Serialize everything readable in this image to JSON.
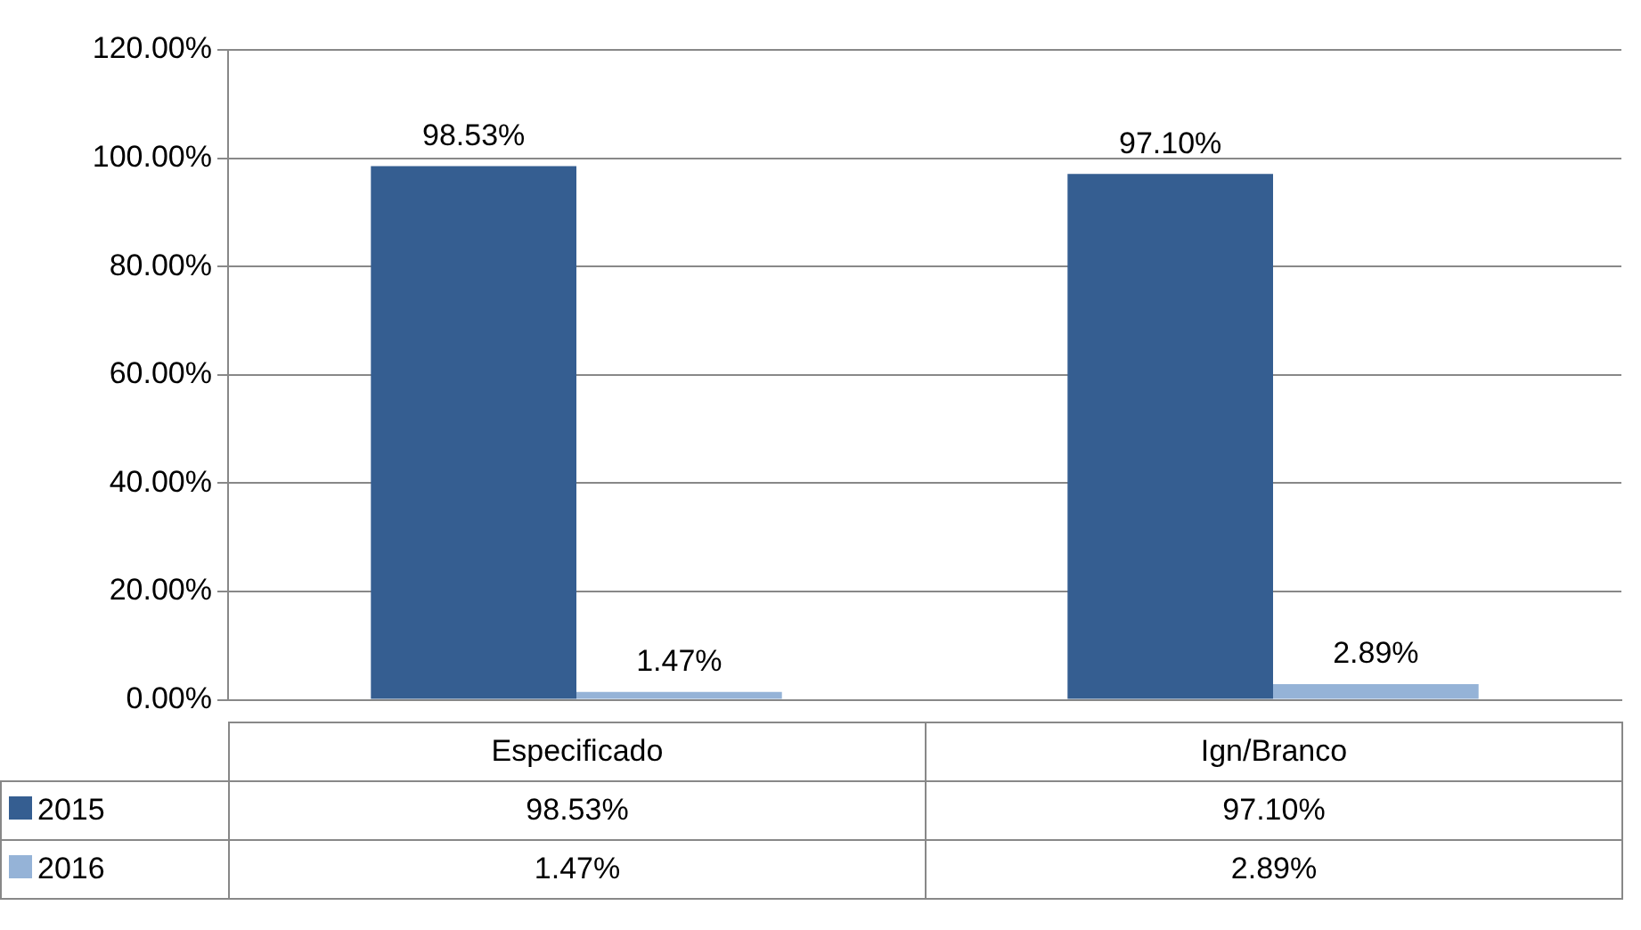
{
  "chart_data": {
    "type": "bar",
    "categories": [
      "Especificado",
      "Ign/Branco"
    ],
    "series": [
      {
        "name": "2015",
        "color": "#355e91",
        "values": [
          98.53,
          97.1
        ],
        "value_labels": [
          "98.53%",
          "97.10%"
        ]
      },
      {
        "name": "2016",
        "color": "#95b3d7",
        "values": [
          1.47,
          2.89
        ],
        "value_labels": [
          "1.47%",
          "2.89%"
        ]
      }
    ],
    "ylim": [
      0,
      120
    ],
    "yticks": [
      {
        "value": 0,
        "label": "0.00%"
      },
      {
        "value": 20,
        "label": "20.00%"
      },
      {
        "value": 40,
        "label": "40.00%"
      },
      {
        "value": 60,
        "label": "60.00%"
      },
      {
        "value": 80,
        "label": "80.00%"
      },
      {
        "value": 100,
        "label": "100.00%"
      },
      {
        "value": 120,
        "label": "120.00%"
      }
    ],
    "grid": "y",
    "legend": "bottom"
  }
}
